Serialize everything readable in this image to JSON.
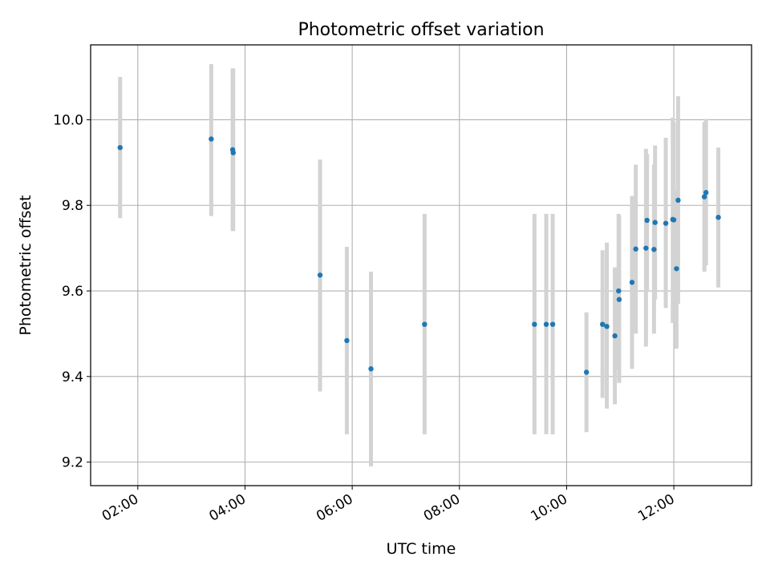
{
  "chart_data": {
    "type": "scatter",
    "title": "Photometric offset variation",
    "xlabel": "UTC time",
    "ylabel": "Photometric offset",
    "x_axis": {
      "unit": "hours UTC",
      "range": [
        1.12,
        13.45
      ],
      "ticks": [
        {
          "value": 2,
          "label": "02:00"
        },
        {
          "value": 4,
          "label": "04:00"
        },
        {
          "value": 6,
          "label": "06:00"
        },
        {
          "value": 8,
          "label": "08:00"
        },
        {
          "value": 10,
          "label": "10:00"
        },
        {
          "value": 12,
          "label": "12:00"
        }
      ],
      "tick_label_rotation": 30
    },
    "y_axis": {
      "range": [
        9.145,
        10.175
      ],
      "ticks": [
        {
          "value": 9.2,
          "label": "9.2"
        },
        {
          "value": 9.4,
          "label": "9.4"
        },
        {
          "value": 9.6,
          "label": "9.6"
        },
        {
          "value": 9.8,
          "label": "9.8"
        },
        {
          "value": 10.0,
          "label": "10.0"
        }
      ]
    },
    "grid": true,
    "point_color": "#1f77b4",
    "errorbar_color": "#d3d3d3",
    "points": [
      {
        "x": 1.67,
        "y": 9.935,
        "lo": 9.77,
        "hi": 10.1
      },
      {
        "x": 3.37,
        "y": 9.955,
        "lo": 9.775,
        "hi": 10.13
      },
      {
        "x": 3.77,
        "y": 9.93,
        "lo": 9.74,
        "hi": 10.12
      },
      {
        "x": 3.78,
        "y": 9.923,
        "lo": 9.74,
        "hi": 10.12
      },
      {
        "x": 5.4,
        "y": 9.637,
        "lo": 9.365,
        "hi": 9.907
      },
      {
        "x": 5.9,
        "y": 9.484,
        "lo": 9.265,
        "hi": 9.703
      },
      {
        "x": 6.35,
        "y": 9.418,
        "lo": 9.19,
        "hi": 9.645
      },
      {
        "x": 7.35,
        "y": 9.522,
        "lo": 9.265,
        "hi": 9.78
      },
      {
        "x": 9.4,
        "y": 9.522,
        "lo": 9.265,
        "hi": 9.78
      },
      {
        "x": 9.62,
        "y": 9.522,
        "lo": 9.265,
        "hi": 9.78
      },
      {
        "x": 9.74,
        "y": 9.522,
        "lo": 9.265,
        "hi": 9.78
      },
      {
        "x": 10.37,
        "y": 9.41,
        "lo": 9.27,
        "hi": 9.55
      },
      {
        "x": 10.67,
        "y": 9.522,
        "lo": 9.35,
        "hi": 9.695
      },
      {
        "x": 10.75,
        "y": 9.517,
        "lo": 9.325,
        "hi": 9.713
      },
      {
        "x": 10.9,
        "y": 9.495,
        "lo": 9.335,
        "hi": 9.655
      },
      {
        "x": 10.97,
        "y": 9.6,
        "lo": 9.415,
        "hi": 9.78
      },
      {
        "x": 10.98,
        "y": 9.58,
        "lo": 9.385,
        "hi": 9.775
      },
      {
        "x": 11.22,
        "y": 9.62,
        "lo": 9.418,
        "hi": 9.822
      },
      {
        "x": 11.29,
        "y": 9.698,
        "lo": 9.5,
        "hi": 9.895
      },
      {
        "x": 11.48,
        "y": 9.7,
        "lo": 9.47,
        "hi": 9.932
      },
      {
        "x": 11.5,
        "y": 9.765,
        "lo": 9.6,
        "hi": 9.92
      },
      {
        "x": 11.63,
        "y": 9.697,
        "lo": 9.5,
        "hi": 9.895
      },
      {
        "x": 11.65,
        "y": 9.76,
        "lo": 9.58,
        "hi": 9.94
      },
      {
        "x": 11.85,
        "y": 9.758,
        "lo": 9.56,
        "hi": 9.958
      },
      {
        "x": 11.98,
        "y": 9.767,
        "lo": 9.525,
        "hi": 10.005
      },
      {
        "x": 12.0,
        "y": 9.766,
        "lo": 9.53,
        "hi": 9.995
      },
      {
        "x": 12.05,
        "y": 9.652,
        "lo": 9.465,
        "hi": 9.835
      },
      {
        "x": 12.08,
        "y": 9.812,
        "lo": 9.57,
        "hi": 10.055
      },
      {
        "x": 12.57,
        "y": 9.82,
        "lo": 9.645,
        "hi": 9.995
      },
      {
        "x": 12.6,
        "y": 9.83,
        "lo": 9.66,
        "hi": 10.002
      },
      {
        "x": 12.83,
        "y": 9.772,
        "lo": 9.608,
        "hi": 9.935
      }
    ]
  }
}
